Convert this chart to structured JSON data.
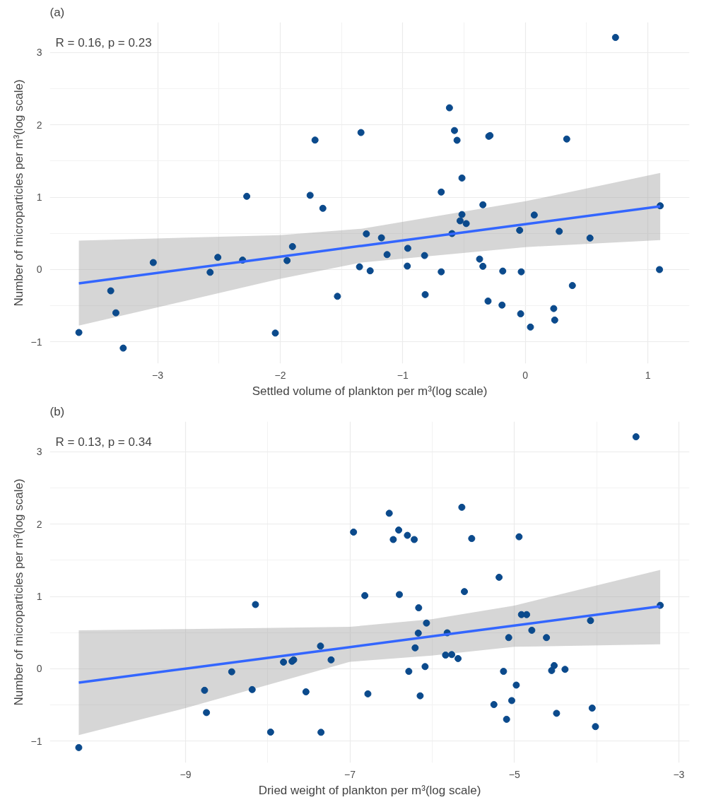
{
  "chart_data": [
    {
      "type": "scatter",
      "title": "(a)",
      "xlabel": "Settled volume of plankton per m³(log scale)",
      "ylabel": "Number of microparticles per m³(log scale)",
      "annotations": [
        "R = 0.16, p = 0.23"
      ],
      "xlim": [
        -3.88,
        1.34
      ],
      "ylim": [
        -1.3,
        3.42
      ],
      "xticks": [
        -3,
        -2,
        -1,
        0,
        1
      ],
      "yticks": [
        -1,
        0,
        1,
        2,
        3
      ],
      "grid": true,
      "marker": "circle",
      "series": [
        {
          "color": "#0b4a8c",
          "x": [
            -3.643,
            -3.281,
            -3.383,
            -3.341,
            -3.036,
            -2.572,
            -2.509,
            -2.307,
            -2.273,
            -2.04,
            -1.944,
            -1.9,
            -1.756,
            -1.716,
            -1.652,
            -1.533,
            -1.341,
            -1.297,
            -1.353,
            -1.266,
            -1.174,
            -1.128,
            -0.959,
            -0.963,
            -0.822,
            -0.817,
            -0.686,
            -0.686,
            -0.619,
            -0.598,
            -0.578,
            -0.557,
            -0.517,
            -0.517,
            -0.532,
            -0.482,
            -0.373,
            -0.346,
            -0.346,
            -0.304,
            -0.298,
            -0.288,
            -0.184,
            -0.19,
            -0.046,
            -0.033,
            -0.038,
            0.042,
            0.073,
            0.232,
            0.24,
            0.277,
            0.338,
            0.384,
            0.528,
            0.736,
            1.101,
            1.095
          ],
          "values": [
            -0.87,
            -1.086,
            -0.294,
            -0.598,
            0.097,
            -0.038,
            0.169,
            0.131,
            1.013,
            -0.878,
            0.124,
            0.318,
            1.027,
            1.791,
            0.847,
            -0.37,
            1.895,
            0.494,
            0.038,
            -0.017,
            0.439,
            0.207,
            0.294,
            0.048,
            0.194,
            -0.346,
            1.072,
            -0.031,
            2.237,
            0.498,
            1.923,
            1.788,
            1.266,
            0.761,
            0.674,
            0.636,
            0.145,
            0.045,
            0.896,
            -0.436,
            1.843,
            1.853,
            -0.021,
            -0.491,
            0.543,
            -0.031,
            -0.612,
            -0.795,
            0.754,
            -0.539,
            -0.698,
            0.529,
            1.805,
            -0.221,
            0.436,
            3.21,
            0.882,
            0.0
          ]
        },
        {
          "type": "line",
          "marker": "none",
          "color": "#3366ff",
          "x": [
            -3.643,
            -2,
            -1.337,
            0,
            1.101
          ],
          "values": [
            -0.19,
            0.179,
            0.328,
            0.628,
            0.875
          ],
          "lower": [
            -0.775,
            -0.128,
            0.097,
            0.311,
            0.408
          ],
          "upper": [
            0.4,
            0.477,
            0.564,
            0.944,
            1.335
          ]
        }
      ]
    },
    {
      "type": "scatter",
      "title": "(b)",
      "xlabel": "Dried weight of plankton per m³(log scale)",
      "ylabel": "Number of microparticles per m³(log scale)",
      "annotations": [
        "R = 0.13, p = 0.34"
      ],
      "xlim": [
        -10.65,
        -2.87
      ],
      "ylim": [
        -1.3,
        3.42
      ],
      "xticks": [
        -9,
        -7,
        -5,
        -3
      ],
      "yticks": [
        -1,
        0,
        1,
        2,
        3
      ],
      "grid": true,
      "marker": "circle",
      "series": [
        {
          "color": "#0b4a8c",
          "x": [
            -10.298,
            -8.768,
            -8.745,
            -8.438,
            -8.189,
            -8.149,
            -7.965,
            -7.808,
            -7.684,
            -7.704,
            -7.535,
            -7.358,
            -7.352,
            -7.229,
            -6.956,
            -6.819,
            -6.782,
            -6.522,
            -6.473,
            -6.407,
            -6.399,
            -6.301,
            -6.218,
            -6.284,
            -6.207,
            -6.169,
            -6.164,
            -6.146,
            -6.086,
            -6.069,
            -5.837,
            -5.817,
            -5.762,
            -5.685,
            -5.639,
            -5.608,
            -5.519,
            -5.249,
            -5.186,
            -5.132,
            -5.095,
            -5.069,
            -5.032,
            -4.977,
            -4.943,
            -4.914,
            -4.851,
            -4.788,
            -4.61,
            -4.547,
            -4.516,
            -4.487,
            -4.384,
            -4.074,
            -4.054,
            -4.014,
            -3.521,
            -3.226
          ],
          "values": [
            -1.089,
            -0.297,
            -0.605,
            -0.041,
            -0.287,
            0.889,
            -0.875,
            0.093,
            0.124,
            0.104,
            -0.318,
            0.315,
            -0.878,
            0.124,
            1.891,
            1.013,
            -0.346,
            2.151,
            1.788,
            1.919,
            1.027,
            1.846,
            1.788,
            -0.035,
            0.29,
            0.494,
            0.844,
            -0.373,
            0.031,
            0.633,
            0.19,
            0.498,
            0.197,
            0.142,
            2.234,
            1.068,
            1.802,
            -0.494,
            1.266,
            -0.035,
            -0.698,
            0.432,
            -0.439,
            -0.225,
            1.826,
            0.75,
            0.75,
            0.533,
            0.432,
            -0.024,
            0.045,
            -0.615,
            -0.007,
            0.667,
            -0.543,
            -0.799,
            3.209,
            0.878
          ]
        },
        {
          "type": "line",
          "marker": "none",
          "color": "#3366ff",
          "x": [
            -10.298,
            -9,
            -7,
            -6.006,
            -5,
            -3.226
          ],
          "values": [
            -0.19,
            0.003,
            0.301,
            0.45,
            0.599,
            0.864
          ],
          "lower": [
            -0.916,
            -0.543,
            0.097,
            0.183,
            0.304,
            0.339
          ],
          "upper": [
            0.532,
            0.55,
            0.581,
            0.685,
            0.875,
            1.369
          ]
        }
      ]
    }
  ]
}
